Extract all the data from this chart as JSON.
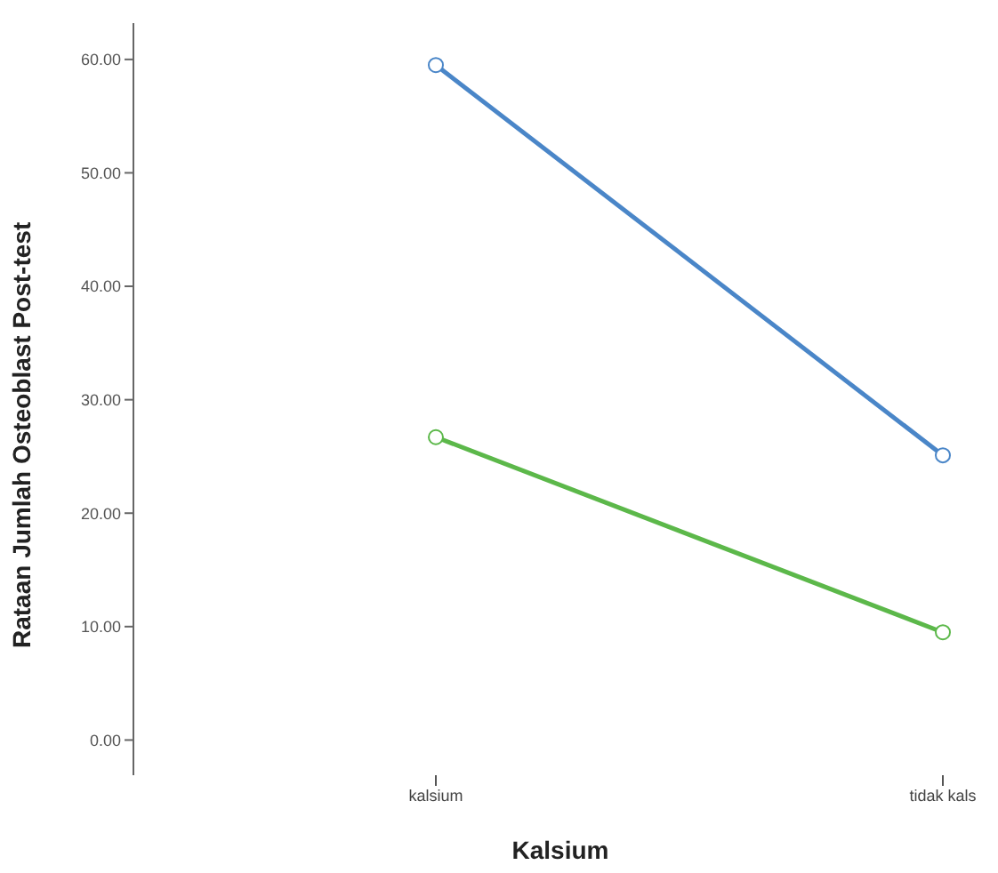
{
  "chart_data": {
    "type": "line",
    "xlabel": "Kalsium",
    "ylabel": "Rataan Jumlah Osteoblast Post-test",
    "categories": [
      "kalsium",
      "tidak kals"
    ],
    "series": [
      {
        "color": "#4a86c8",
        "values": [
          59.5,
          25.1
        ]
      },
      {
        "color": "#5cb84a",
        "values": [
          26.7,
          9.5
        ]
      }
    ],
    "ylim": [
      -3.1,
      63.2
    ],
    "yticks": [
      {
        "value": 0,
        "label": "0.00"
      },
      {
        "value": 10,
        "label": "10.00"
      },
      {
        "value": 20,
        "label": "20.00"
      },
      {
        "value": 30,
        "label": "30.00"
      },
      {
        "value": 40,
        "label": "40.00"
      },
      {
        "value": 50,
        "label": "50.00"
      },
      {
        "value": 60,
        "label": "60.00"
      }
    ],
    "grid": false,
    "legend": false,
    "marker": "circle",
    "line_style": "solid"
  }
}
